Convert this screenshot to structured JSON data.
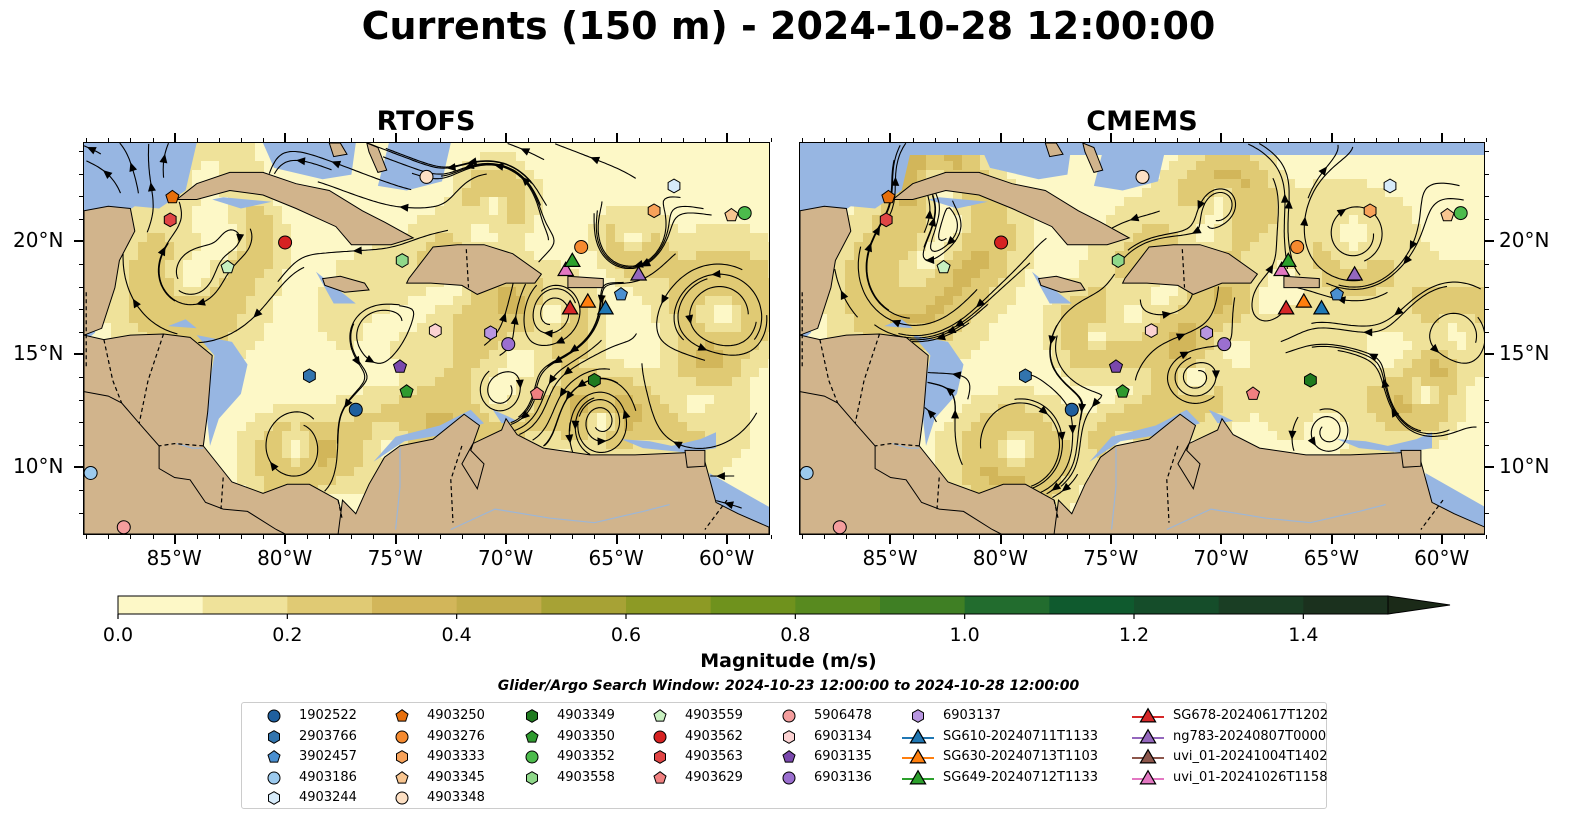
{
  "title": "Currents (150 m) - 2024-10-28 12:00:00",
  "panels": [
    {
      "title": "RTOFS"
    },
    {
      "title": "CMEMS"
    }
  ],
  "axes": {
    "lon_labels": [
      "85°W",
      "80°W",
      "75°W",
      "70°W",
      "65°W",
      "60°W"
    ],
    "lat_labels": [
      "20°N",
      "15°N",
      "10°N"
    ]
  },
  "colorbar": {
    "title": "Magnitude (m/s)",
    "tick_labels": [
      "0.0",
      "0.2",
      "0.4",
      "0.6",
      "0.8",
      "1.0",
      "1.2",
      "1.4"
    ],
    "range": [
      0,
      1.5
    ],
    "step": 0.1,
    "extend": "max",
    "colors": [
      "#fdf8c7",
      "#efe29a",
      "#e0ca74",
      "#d2b65a",
      "#c1ac4a",
      "#a7a235",
      "#8d9a25",
      "#6f921d",
      "#588a1f",
      "#3f7f24",
      "#226c2e",
      "#0f5a2e",
      "#154d2a",
      "#1a3e24",
      "#1b311e"
    ]
  },
  "search_window": "Glider/Argo Search Window: 2024-10-23 12:00:00 to 2024-10-28 12:00:00",
  "legend": {
    "columns": [
      [
        {
          "label": "1902522",
          "marker": "circle",
          "color": "#1f5f9e"
        },
        {
          "label": "2903766",
          "marker": "hexagon",
          "color": "#3274ad"
        },
        {
          "label": "3902457",
          "marker": "pentagon",
          "color": "#4a8fd0"
        },
        {
          "label": "4903186",
          "marker": "circle",
          "color": "#9ccaee"
        },
        {
          "label": "4903244",
          "marker": "hexagon",
          "color": "#d7ebfa"
        }
      ],
      [
        {
          "label": "4903250",
          "marker": "pentagon",
          "color": "#e66f0c"
        },
        {
          "label": "4903276",
          "marker": "circle",
          "color": "#f58a2f"
        },
        {
          "label": "4903333",
          "marker": "hexagon",
          "color": "#f7a25a"
        },
        {
          "label": "4903345",
          "marker": "pentagon",
          "color": "#f8c590"
        },
        {
          "label": "4903348",
          "marker": "circle",
          "color": "#fde0c4"
        }
      ],
      [
        {
          "label": "4903349",
          "marker": "hexagon",
          "color": "#1f7a1f"
        },
        {
          "label": "4903350",
          "marker": "pentagon",
          "color": "#2f9a2f"
        },
        {
          "label": "4903352",
          "marker": "circle",
          "color": "#4cbb4c"
        },
        {
          "label": "4903558",
          "marker": "hexagon",
          "color": "#8fd88a"
        }
      ],
      [
        {
          "label": "4903559",
          "marker": "pentagon",
          "color": "#c8f0c0"
        },
        {
          "label": "4903562",
          "marker": "circle",
          "color": "#d62222"
        },
        {
          "label": "4903563",
          "marker": "hexagon",
          "color": "#e04545"
        },
        {
          "label": "4903629",
          "marker": "pentagon",
          "color": "#f08080"
        }
      ],
      [
        {
          "label": "5906478",
          "marker": "circle",
          "color": "#f49d9d"
        },
        {
          "label": "6903134",
          "marker": "hexagon",
          "color": "#fbd2d2"
        },
        {
          "label": "6903135",
          "marker": "pentagon",
          "color": "#7a48ad"
        },
        {
          "label": "6903136",
          "marker": "circle",
          "color": "#9b6fcf"
        }
      ],
      [
        {
          "label": "6903137",
          "marker": "hexagon",
          "color": "#b896e0"
        },
        {
          "label": "SG610-20240711T1133",
          "marker": "triangle-line",
          "color": "#1f77b4"
        },
        {
          "label": "SG630-20240713T1103",
          "marker": "triangle-line",
          "color": "#ff7f0e"
        },
        {
          "label": "SG649-20240712T1133",
          "marker": "triangle-line",
          "color": "#2ca02c"
        }
      ],
      [
        {
          "label": "SG678-20240617T1202",
          "marker": "triangle-line",
          "color": "#d62728"
        },
        {
          "label": "ng783-20240807T0000",
          "marker": "triangle-line",
          "color": "#9467bd"
        },
        {
          "label": "uvi_01-20241004T1402",
          "marker": "triangle-line",
          "color": "#8c564b"
        },
        {
          "label": "uvi_01-20241026T1158",
          "marker": "triangle-line",
          "color": "#e377c2"
        }
      ]
    ]
  },
  "observations": [
    {
      "id": "4903250",
      "lon": -85.1,
      "lat": 22.0
    },
    {
      "id": "4903563",
      "lon": -85.2,
      "lat": 21.0
    },
    {
      "id": "4903562",
      "lon": -80.0,
      "lat": 20.0
    },
    {
      "id": "4903559",
      "lon": -82.6,
      "lat": 18.9
    },
    {
      "id": "4903348",
      "lon": -73.6,
      "lat": 22.9
    },
    {
      "id": "4903558",
      "lon": -74.7,
      "lat": 19.2
    },
    {
      "id": "4903244",
      "lon": -62.4,
      "lat": 22.5
    },
    {
      "id": "4903333",
      "lon": -63.3,
      "lat": 21.4
    },
    {
      "id": "4903345",
      "lon": -59.8,
      "lat": 21.2
    },
    {
      "id": "4903352",
      "lon": -59.2,
      "lat": 21.3
    },
    {
      "id": "4903276",
      "lon": -66.6,
      "lat": 19.8
    },
    {
      "id": "3902457",
      "lon": -64.8,
      "lat": 17.7
    },
    {
      "id": "6903134",
      "lon": -73.2,
      "lat": 16.1
    },
    {
      "id": "6903137",
      "lon": -70.7,
      "lat": 16.0
    },
    {
      "id": "6903136",
      "lon": -69.9,
      "lat": 15.5
    },
    {
      "id": "6903135",
      "lon": -74.8,
      "lat": 14.5
    },
    {
      "id": "4903350",
      "lon": -74.5,
      "lat": 13.4
    },
    {
      "id": "2903766",
      "lon": -78.9,
      "lat": 14.1
    },
    {
      "id": "1902522",
      "lon": -76.8,
      "lat": 12.6
    },
    {
      "id": "4903349",
      "lon": -66.0,
      "lat": 13.9
    },
    {
      "id": "4903629",
      "lon": -68.6,
      "lat": 13.3
    },
    {
      "id": "4903186",
      "lon": -88.8,
      "lat": 9.8
    },
    {
      "id": "5906478",
      "lon": -87.3,
      "lat": 7.4
    },
    {
      "id": "uvi_01-20241026T1158",
      "lon": -67.3,
      "lat": 18.8
    },
    {
      "id": "SG649-20240712T1133",
      "lon": -67.0,
      "lat": 19.2
    },
    {
      "id": "ng783-20240807T0000",
      "lon": -64.0,
      "lat": 18.6
    },
    {
      "id": "SG678-20240617T1202",
      "lon": -67.1,
      "lat": 17.1
    },
    {
      "id": "SG630-20240713T1103",
      "lon": -66.3,
      "lat": 17.4
    },
    {
      "id": "SG610-20240711T1133",
      "lon": -65.5,
      "lat": 17.1
    }
  ],
  "map_colors": {
    "ocean_shallow": "#97b6e2",
    "land": "#d1b48c",
    "coast": "#000000",
    "borders": "#000000",
    "rivers": "#9db6d6"
  }
}
